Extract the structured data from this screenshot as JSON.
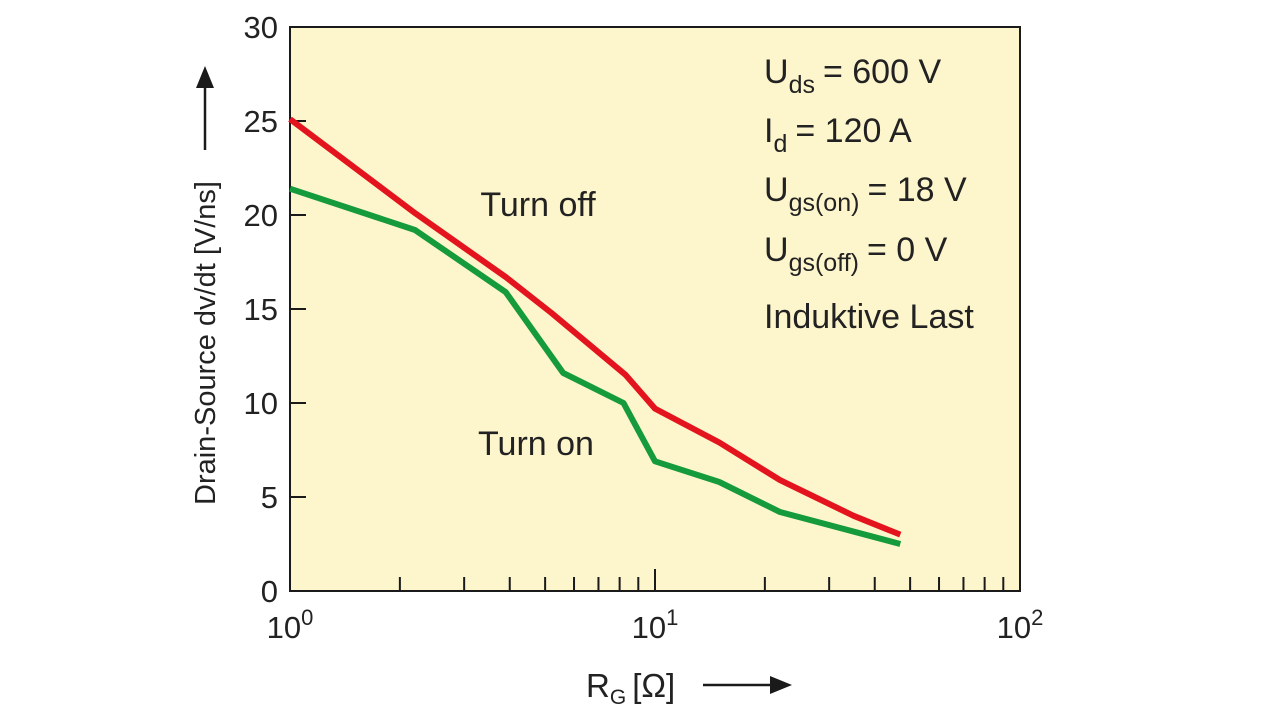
{
  "colors": {
    "plot_bg": "#fdf5cc",
    "axis": "#1a1a1a",
    "turn_off": "#e3141d",
    "turn_on": "#159a3c"
  },
  "chart_data": {
    "type": "line",
    "x_scale": "log",
    "xlim": [
      1,
      100
    ],
    "ylim": [
      0,
      30
    ],
    "yticks": [
      0,
      5,
      10,
      15,
      20,
      25,
      30
    ],
    "xticks": [
      {
        "value": 1,
        "base": "10",
        "exp": "0"
      },
      {
        "value": 10,
        "base": "10",
        "exp": "1"
      },
      {
        "value": 100,
        "base": "10",
        "exp": "2"
      }
    ],
    "ylabel": "Drain-Source dv/dt [V/ns]",
    "xlabel": {
      "main": "R",
      "sub": "G",
      "unit": "[Ω]"
    },
    "grid": false,
    "series": [
      {
        "name": "Turn off",
        "color": "#e3141d",
        "x": [
          1.0,
          2.2,
          3.9,
          5.2,
          8.3,
          10,
          15,
          22,
          35,
          47
        ],
        "y": [
          25.1,
          20.1,
          16.7,
          14.8,
          11.5,
          9.7,
          7.9,
          5.9,
          4.0,
          3.0
        ]
      },
      {
        "name": "Turn on",
        "color": "#159a3c",
        "x": [
          1.0,
          2.2,
          3.9,
          5.6,
          8.2,
          10,
          15,
          22,
          47
        ],
        "y": [
          21.4,
          19.2,
          15.9,
          11.6,
          10.0,
          6.9,
          5.8,
          4.2,
          2.5
        ]
      }
    ],
    "conditions": [
      {
        "main": "U",
        "sub": "ds",
        "value": "= 600 V"
      },
      {
        "main": "I",
        "sub": "d",
        "value": "= 120 A"
      },
      {
        "main": "U",
        "sub": "gs(on)",
        "value": "= 18 V"
      },
      {
        "main": "U",
        "sub": "gs(off)",
        "value": "= 0 V"
      },
      {
        "main": "Induktive Last",
        "sub": "",
        "value": ""
      }
    ]
  }
}
